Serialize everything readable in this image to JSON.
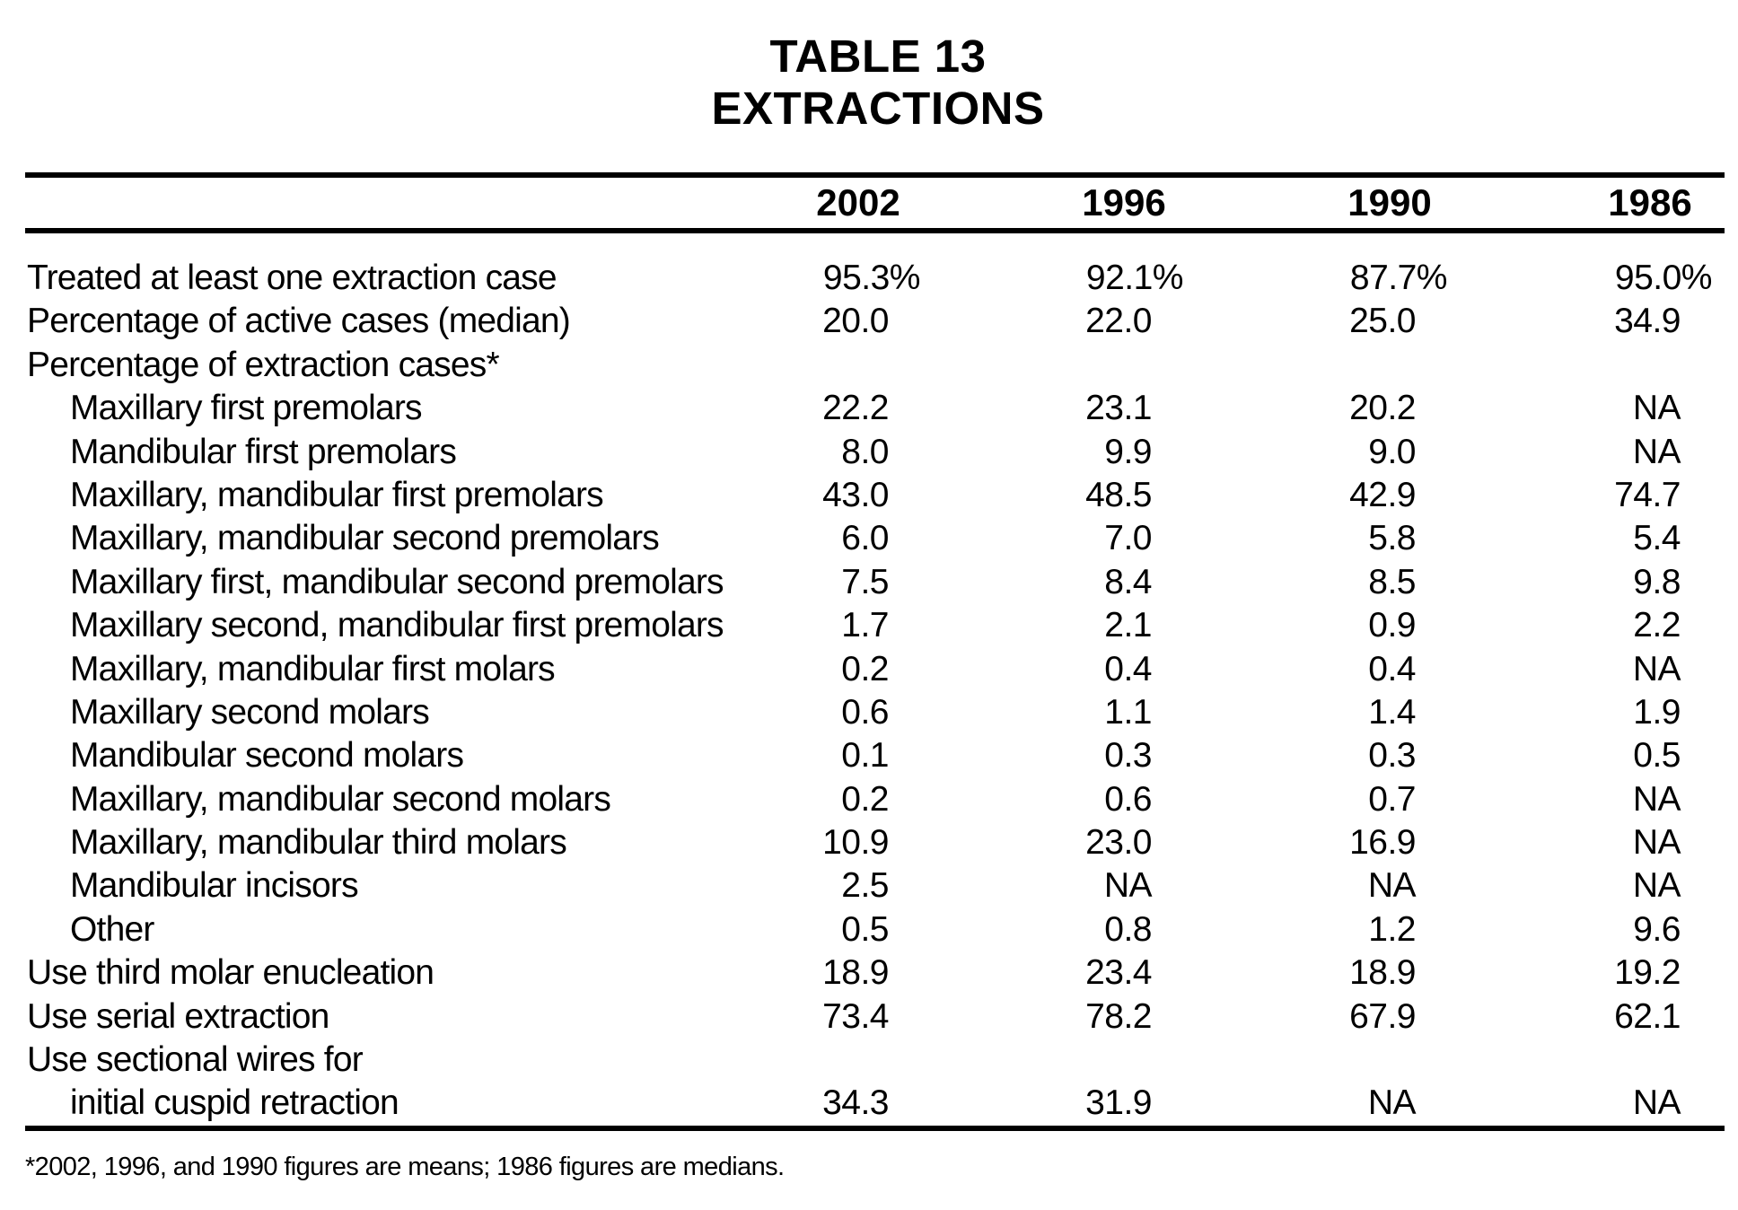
{
  "title": {
    "line1": "TABLE 13",
    "line2": "EXTRACTIONS"
  },
  "colors": {
    "background": "#ffffff",
    "text": "#000000"
  },
  "table": {
    "year_headers": [
      "2002",
      "1996",
      "1990",
      "1986"
    ],
    "rows": [
      {
        "label": "Treated at least one extraction case",
        "indent": false,
        "values": [
          "95.3%",
          "92.1%",
          "87.7%",
          "95.0%"
        ]
      },
      {
        "label": "Percentage of active cases (median)",
        "indent": false,
        "values": [
          "20.0",
          "22.0",
          "25.0",
          "34.9"
        ]
      },
      {
        "label": "Percentage of extraction cases*",
        "indent": false,
        "values": [
          "",
          "",
          "",
          ""
        ]
      },
      {
        "label": "Maxillary first premolars",
        "indent": true,
        "values": [
          "22.2",
          "23.1",
          "20.2",
          "NA"
        ]
      },
      {
        "label": "Mandibular first premolars",
        "indent": true,
        "values": [
          "8.0",
          "9.9",
          "9.0",
          "NA"
        ]
      },
      {
        "label": "Maxillary, mandibular first premolars",
        "indent": true,
        "values": [
          "43.0",
          "48.5",
          "42.9",
          "74.7"
        ]
      },
      {
        "label": "Maxillary, mandibular second premolars",
        "indent": true,
        "values": [
          "6.0",
          "7.0",
          "5.8",
          "5.4"
        ]
      },
      {
        "label": "Maxillary first, mandibular second premolars",
        "indent": true,
        "values": [
          "7.5",
          "8.4",
          "8.5",
          "9.8"
        ]
      },
      {
        "label": "Maxillary second, mandibular first premolars",
        "indent": true,
        "values": [
          "1.7",
          "2.1",
          "0.9",
          "2.2"
        ]
      },
      {
        "label": "Maxillary, mandibular first molars",
        "indent": true,
        "values": [
          "0.2",
          "0.4",
          "0.4",
          "NA"
        ]
      },
      {
        "label": "Maxillary second molars",
        "indent": true,
        "values": [
          "0.6",
          "1.1",
          "1.4",
          "1.9"
        ]
      },
      {
        "label": "Mandibular second molars",
        "indent": true,
        "values": [
          "0.1",
          "0.3",
          "0.3",
          "0.5"
        ]
      },
      {
        "label": "Maxillary, mandibular second molars",
        "indent": true,
        "values": [
          "0.2",
          "0.6",
          "0.7",
          "NA"
        ]
      },
      {
        "label": "Maxillary, mandibular third molars",
        "indent": true,
        "values": [
          "10.9",
          "23.0",
          "16.9",
          "NA"
        ]
      },
      {
        "label": "Mandibular incisors",
        "indent": true,
        "values": [
          "2.5",
          "NA",
          "NA",
          "NA"
        ]
      },
      {
        "label": "Other",
        "indent": true,
        "values": [
          "0.5",
          "0.8",
          "1.2",
          "9.6"
        ]
      },
      {
        "label": "Use third molar enucleation",
        "indent": false,
        "values": [
          "18.9",
          "23.4",
          "18.9",
          "19.2"
        ]
      },
      {
        "label": "Use serial extraction",
        "indent": false,
        "values": [
          "73.4",
          "78.2",
          "67.9",
          "62.1"
        ]
      },
      {
        "label": "Use sectional wires for",
        "indent": false,
        "values": [
          "",
          "",
          "",
          ""
        ]
      },
      {
        "label": "initial cuspid retraction",
        "indent": true,
        "values": [
          "34.3",
          "31.9",
          "NA",
          "NA"
        ]
      }
    ]
  },
  "footnote": "*2002, 1996, and 1990 figures are means; 1986 figures are medians."
}
